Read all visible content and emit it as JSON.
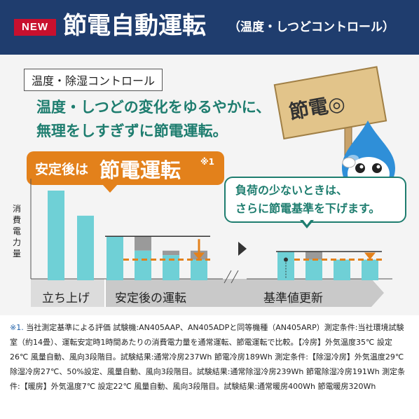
{
  "header": {
    "badge": "NEW",
    "title": "節電自動運転",
    "subtitle": "（温度・しつどコントロール）"
  },
  "tag": "温度・除湿コントロール",
  "headline": {
    "line1": "温度・しつどの変化をゆるやかに、",
    "line2": "無理をしすぎずに節電運転。"
  },
  "callout_orange": {
    "prefix": "安定後は",
    "main": "節電運転",
    "note": "※1"
  },
  "callout_white": {
    "line1": "負荷の少ないときは、",
    "line2": "さらに節電基準を下げます。"
  },
  "sign": "節電◎",
  "chart_data": {
    "type": "bar",
    "ylabel": "消費電力量",
    "phases": [
      "立ち上げ",
      "安定後の運転",
      "基準値更新"
    ],
    "bars": [
      {
        "phase": "立ち上げ",
        "value": 100
      },
      {
        "phase": "立ち上げ",
        "value": 72
      },
      {
        "phase": "安定後の運転",
        "value": 49
      },
      {
        "phase": "安定後の運転",
        "value": 33,
        "reference": 49
      },
      {
        "phase": "安定後の運転",
        "value": 28,
        "reference": 33
      },
      {
        "phase": "安定後の運転",
        "value": 23,
        "reference": 33
      },
      {
        "phase": "基準値更新",
        "value": 32
      },
      {
        "phase": "基準値更新",
        "value": 23,
        "reference": 32
      },
      {
        "phase": "基準値更新",
        "value": 23,
        "reference": 21
      },
      {
        "phase": "基準値更新",
        "value": 23,
        "reference": 22
      }
    ],
    "baselines": [
      {
        "phase": "安定後の運転",
        "value": 23
      },
      {
        "phase": "基準値更新",
        "value": 23
      }
    ],
    "colors": {
      "bar": "#6fd0d6",
      "reference": "#9a9a9a",
      "baseline": "#e3811b",
      "arrow": "#e3811b"
    }
  },
  "footnote": {
    "mark": "※1.",
    "text": " 当社測定基準による評価 試験機:AN405AAP、AN405ADPと同等機種（AN405ARP）測定条件:当社環境試験室（約14畳）、運転安定時1時間あたりの消費電力量を通常運転、節電運転で比較。【冷房】外気温度35℃ 設定26℃ 風量自動、風向3段階目。試験結果:通常冷房237Wh 節電冷房189Wh 測定条件:【除湿冷房】外気温度29℃ 除湿冷房27℃、50%設定、風量自動、風向3段階目。試験結果:通常除湿冷房239Wh 節電除湿冷房191Wh 測定条件:【暖房】外気温度7℃ 設定22℃ 風量自動、風向3段階目。試験結果:通常暖房400Wh 節電暖房320Wh"
  }
}
